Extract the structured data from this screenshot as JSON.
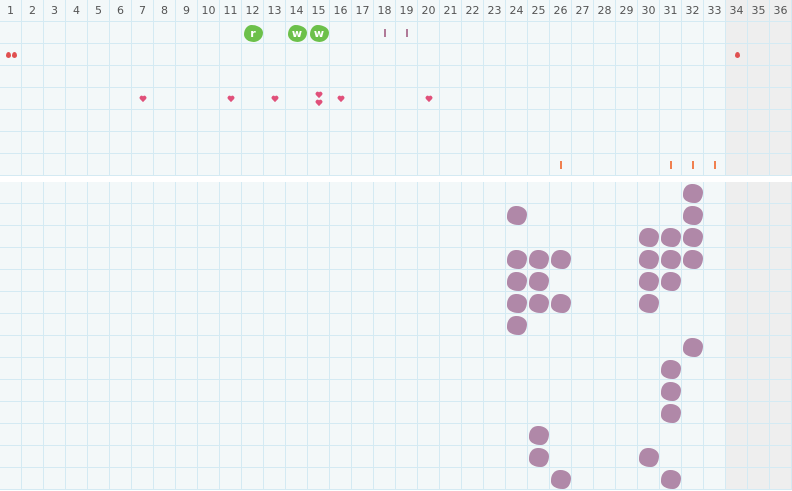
{
  "columns": [
    "1",
    "2",
    "3",
    "4",
    "5",
    "6",
    "7",
    "8",
    "9",
    "10",
    "11",
    "12",
    "13",
    "14",
    "15",
    "16",
    "17",
    "18",
    "19",
    "20",
    "21",
    "22",
    "23",
    "24",
    "25",
    "26",
    "27",
    "28",
    "29",
    "30",
    "31",
    "32",
    "33",
    "34",
    "35",
    "36"
  ],
  "shaded_columns": [
    34,
    35,
    36
  ],
  "colors": {
    "grid_bg": "#f3f8f9",
    "grid_line": "#d4eaf3",
    "shaded": "#eeeeee",
    "green": "#6cc04a",
    "purple": "#b088a8",
    "tick_mauve": "#b07a98",
    "tick_orange": "#f08050",
    "heart": "#e0507a",
    "drop": "#e05050"
  },
  "upper_marks": [
    {
      "row": 0,
      "col": 12,
      "type": "green-badge",
      "label": "r"
    },
    {
      "row": 0,
      "col": 14,
      "type": "green-badge",
      "label": "w"
    },
    {
      "row": 0,
      "col": 15,
      "type": "green-badge",
      "label": "w"
    },
    {
      "row": 0,
      "col": 18,
      "type": "tick-mauve"
    },
    {
      "row": 0,
      "col": 19,
      "type": "tick-mauve"
    },
    {
      "row": 1,
      "col": 1,
      "type": "drop",
      "count": 2
    },
    {
      "row": 1,
      "col": 34,
      "type": "drop",
      "count": 1
    },
    {
      "row": 3,
      "col": 7,
      "type": "heart",
      "count": 1
    },
    {
      "row": 3,
      "col": 11,
      "type": "heart",
      "count": 1
    },
    {
      "row": 3,
      "col": 13,
      "type": "heart",
      "count": 1
    },
    {
      "row": 3,
      "col": 15,
      "type": "heart",
      "count": 2
    },
    {
      "row": 3,
      "col": 16,
      "type": "heart",
      "count": 1
    },
    {
      "row": 3,
      "col": 20,
      "type": "heart",
      "count": 1
    },
    {
      "row": 6,
      "col": 26,
      "type": "tick-orange"
    },
    {
      "row": 6,
      "col": 31,
      "type": "tick-orange"
    },
    {
      "row": 6,
      "col": 32,
      "type": "tick-orange"
    },
    {
      "row": 6,
      "col": 33,
      "type": "tick-orange"
    }
  ],
  "lower_marks": [
    [
      32
    ],
    [
      24,
      32
    ],
    [
      30,
      31,
      32
    ],
    [
      24,
      25,
      26,
      30,
      31,
      32
    ],
    [
      24,
      25,
      30,
      31
    ],
    [
      24,
      25,
      26,
      30
    ],
    [
      24
    ],
    [
      32
    ],
    [
      31
    ],
    [
      31
    ],
    [
      31
    ],
    [
      25
    ],
    [
      25,
      30
    ],
    [
      26,
      31
    ]
  ]
}
